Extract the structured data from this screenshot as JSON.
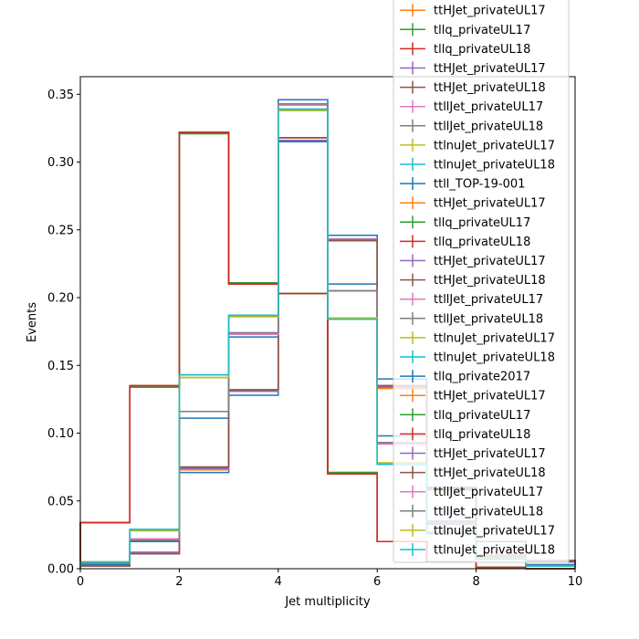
{
  "chart_data": {
    "type": "step",
    "xlabel": "Jet multiplicity",
    "ylabel": "Events",
    "xlim": [
      0,
      10
    ],
    "ylim": [
      0,
      0.363
    ],
    "x_ticks": [
      0,
      2,
      4,
      6,
      8,
      10
    ],
    "y_ticks": [
      0.0,
      0.05,
      0.1,
      0.15,
      0.2,
      0.25,
      0.3,
      0.35
    ],
    "y_tick_labels": [
      "0.00",
      "0.05",
      "0.10",
      "0.15",
      "0.20",
      "0.25",
      "0.30",
      "0.35"
    ],
    "bin_edges": [
      0,
      1,
      2,
      3,
      4,
      5,
      6,
      7,
      8,
      9,
      10
    ],
    "grid": false,
    "legend_position": "top-right, partly outside plot",
    "series": [
      {
        "name": "ttHJet_privateUL17",
        "color": "#ff7f0e",
        "values": [
          0.002,
          0.012,
          0.073,
          0.132,
          0.318,
          0.243,
          0.133,
          0.058,
          0.02,
          0.006
        ]
      },
      {
        "name": "tllq_privateUL17",
        "color": "#2ca02c",
        "values": [
          0.034,
          0.134,
          0.321,
          0.211,
          0.203,
          0.071,
          0.02,
          0.005,
          0.001,
          0.0
        ]
      },
      {
        "name": "tllq_privateUL18",
        "color": "#d62728",
        "values": [
          0.034,
          0.135,
          0.322,
          0.21,
          0.203,
          0.07,
          0.02,
          0.005,
          0.001,
          0.0
        ]
      },
      {
        "name": "ttHJet_privateUL17",
        "color": "#9467bd",
        "values": [
          0.002,
          0.012,
          0.074,
          0.131,
          0.316,
          0.243,
          0.134,
          0.059,
          0.02,
          0.006
        ]
      },
      {
        "name": "ttHJet_privateUL18",
        "color": "#8c564b",
        "values": [
          0.002,
          0.011,
          0.075,
          0.132,
          0.318,
          0.242,
          0.135,
          0.059,
          0.02,
          0.006
        ]
      },
      {
        "name": "ttllJet_privateUL17",
        "color": "#e377c2",
        "values": [
          0.004,
          0.022,
          0.116,
          0.173,
          0.342,
          0.205,
          0.092,
          0.034,
          0.01,
          0.002
        ]
      },
      {
        "name": "ttllJet_privateUL18",
        "color": "#7f7f7f",
        "values": [
          0.004,
          0.021,
          0.116,
          0.174,
          0.343,
          0.205,
          0.093,
          0.033,
          0.009,
          0.002
        ]
      },
      {
        "name": "ttlnuJet_privateUL17",
        "color": "#bcbd22",
        "values": [
          0.005,
          0.028,
          0.141,
          0.186,
          0.338,
          0.185,
          0.078,
          0.027,
          0.008,
          0.002
        ]
      },
      {
        "name": "ttlnuJet_privateUL18",
        "color": "#17becf",
        "values": [
          0.005,
          0.029,
          0.143,
          0.187,
          0.339,
          0.184,
          0.077,
          0.026,
          0.007,
          0.002
        ]
      },
      {
        "name": "ttll_TOP-19-001",
        "color": "#1f77b4",
        "values": [
          0.003,
          0.02,
          0.111,
          0.171,
          0.346,
          0.21,
          0.098,
          0.035,
          0.01,
          0.003
        ]
      },
      {
        "name": "ttHJet_privateUL17",
        "color": "#ff7f0e",
        "values": [
          0.002,
          0.012,
          0.073,
          0.132,
          0.318,
          0.243,
          0.133,
          0.058,
          0.02,
          0.006
        ]
      },
      {
        "name": "tllq_privateUL17",
        "color": "#2ca02c",
        "values": [
          0.034,
          0.134,
          0.321,
          0.211,
          0.203,
          0.071,
          0.02,
          0.005,
          0.001,
          0.0
        ]
      },
      {
        "name": "tllq_privateUL18",
        "color": "#d62728",
        "values": [
          0.034,
          0.135,
          0.322,
          0.21,
          0.203,
          0.07,
          0.02,
          0.005,
          0.001,
          0.0
        ]
      },
      {
        "name": "ttHJet_privateUL17",
        "color": "#9467bd",
        "values": [
          0.002,
          0.012,
          0.074,
          0.131,
          0.316,
          0.243,
          0.134,
          0.059,
          0.02,
          0.006
        ]
      },
      {
        "name": "ttHJet_privateUL18",
        "color": "#8c564b",
        "values": [
          0.002,
          0.011,
          0.075,
          0.132,
          0.318,
          0.242,
          0.135,
          0.059,
          0.02,
          0.006
        ]
      },
      {
        "name": "ttllJet_privateUL17",
        "color": "#e377c2",
        "values": [
          0.004,
          0.022,
          0.116,
          0.173,
          0.342,
          0.205,
          0.092,
          0.034,
          0.01,
          0.002
        ]
      },
      {
        "name": "ttllJet_privateUL18",
        "color": "#7f7f7f",
        "values": [
          0.004,
          0.021,
          0.116,
          0.174,
          0.343,
          0.205,
          0.093,
          0.033,
          0.009,
          0.002
        ]
      },
      {
        "name": "ttlnuJet_privateUL17",
        "color": "#bcbd22",
        "values": [
          0.005,
          0.028,
          0.141,
          0.186,
          0.338,
          0.185,
          0.078,
          0.027,
          0.008,
          0.002
        ]
      },
      {
        "name": "ttlnuJet_privateUL18",
        "color": "#17becf",
        "values": [
          0.005,
          0.029,
          0.143,
          0.187,
          0.339,
          0.184,
          0.077,
          0.026,
          0.007,
          0.002
        ]
      },
      {
        "name": "tllq_private2017",
        "color": "#1f77b4",
        "values": [
          0.004,
          0.021,
          0.071,
          0.128,
          0.315,
          0.246,
          0.14,
          0.06,
          0.02,
          0.005
        ]
      },
      {
        "name": "ttHJet_privateUL17",
        "color": "#ff7f0e",
        "values": [
          0.002,
          0.012,
          0.073,
          0.132,
          0.318,
          0.243,
          0.133,
          0.058,
          0.02,
          0.006
        ]
      },
      {
        "name": "tllq_privateUL17",
        "color": "#2ca02c",
        "values": [
          0.034,
          0.134,
          0.321,
          0.211,
          0.203,
          0.071,
          0.02,
          0.005,
          0.001,
          0.0
        ]
      },
      {
        "name": "tllq_privateUL18",
        "color": "#d62728",
        "values": [
          0.034,
          0.135,
          0.322,
          0.21,
          0.203,
          0.07,
          0.02,
          0.005,
          0.001,
          0.0
        ]
      },
      {
        "name": "ttHJet_privateUL17",
        "color": "#9467bd",
        "values": [
          0.002,
          0.012,
          0.074,
          0.131,
          0.316,
          0.243,
          0.134,
          0.059,
          0.02,
          0.006
        ]
      },
      {
        "name": "ttHJet_privateUL18",
        "color": "#8c564b",
        "values": [
          0.002,
          0.011,
          0.075,
          0.132,
          0.318,
          0.242,
          0.135,
          0.059,
          0.02,
          0.006
        ]
      },
      {
        "name": "ttllJet_privateUL17",
        "color": "#e377c2",
        "values": [
          0.004,
          0.022,
          0.116,
          0.173,
          0.342,
          0.205,
          0.092,
          0.034,
          0.01,
          0.002
        ]
      },
      {
        "name": "ttllJet_privateUL18",
        "color": "#7f7f7f",
        "values": [
          0.004,
          0.021,
          0.116,
          0.174,
          0.343,
          0.205,
          0.093,
          0.033,
          0.009,
          0.002
        ]
      },
      {
        "name": "ttlnuJet_privateUL17",
        "color": "#bcbd22",
        "values": [
          0.005,
          0.028,
          0.141,
          0.186,
          0.338,
          0.185,
          0.078,
          0.027,
          0.008,
          0.002
        ]
      },
      {
        "name": "ttlnuJet_privateUL18",
        "color": "#17becf",
        "values": [
          0.005,
          0.029,
          0.143,
          0.187,
          0.339,
          0.184,
          0.077,
          0.026,
          0.007,
          0.002
        ]
      }
    ]
  }
}
